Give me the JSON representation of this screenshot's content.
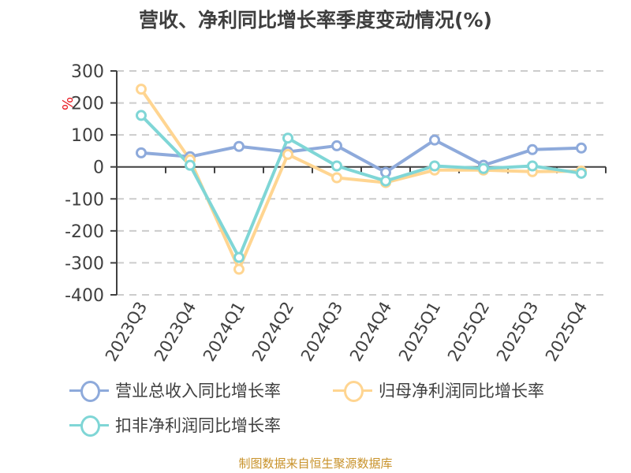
{
  "title": "营收、净利同比增长率季度变动情况(%)",
  "footer": "制图数据来自恒生聚源数据库",
  "chart_data": {
    "type": "line",
    "title": "营收、净利同比增长率季度变动情况(%)",
    "xlabel": "",
    "ylabel": "%",
    "ylim": [
      -400,
      300
    ],
    "yticks": [
      300,
      200,
      100,
      0,
      -100,
      -200,
      -300,
      -400
    ],
    "grid": true,
    "legend_position": "bottom",
    "categories": [
      "2023Q3",
      "2023Q4",
      "2024Q1",
      "2024Q2",
      "2024Q3",
      "2024Q4",
      "2025Q1",
      "2025Q2",
      "2025Q3",
      "2025Q4"
    ],
    "series": [
      {
        "name": "营业总收入同比增长率",
        "color": "#8eaadb",
        "values": [
          44,
          32,
          64,
          47,
          66,
          -17,
          84,
          5,
          54,
          59
        ]
      },
      {
        "name": "归母净利润同比增长率",
        "color": "#ffd591",
        "values": [
          243,
          22,
          -320,
          39,
          -34,
          -49,
          -10,
          -10,
          -15,
          -13
        ]
      },
      {
        "name": "扣非净利润同比增长率",
        "color": "#7fd6d6",
        "values": [
          161,
          5,
          -283,
          90,
          3,
          -44,
          3,
          -5,
          3,
          -20
        ]
      }
    ]
  },
  "legend": [
    {
      "label": "营业总收入同比增长率",
      "color": "#8eaadb"
    },
    {
      "label": "归母净利润同比增长率",
      "color": "#ffd591"
    },
    {
      "label": "扣非净利润同比增长率",
      "color": "#7fd6d6"
    }
  ]
}
